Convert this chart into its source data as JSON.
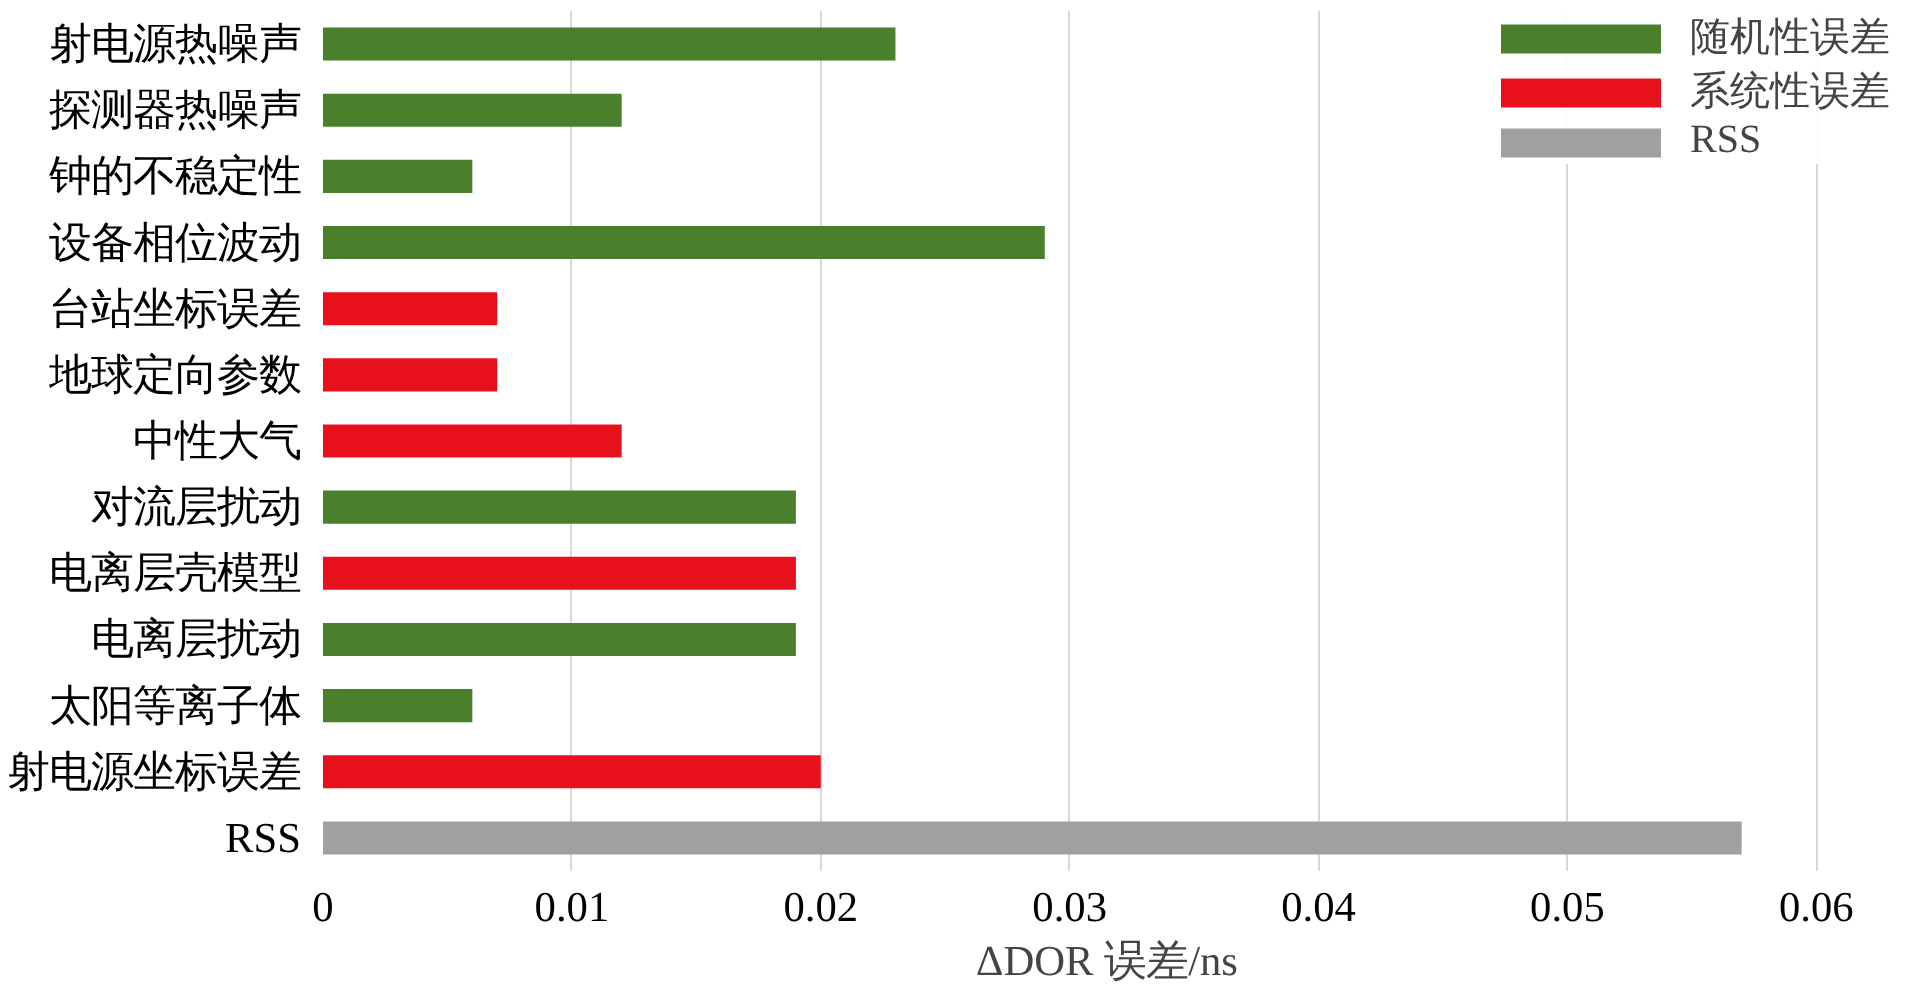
{
  "chart_data": {
    "type": "bar",
    "orientation": "horizontal",
    "xlabel": "ΔDOR 误差/ns",
    "categories": [
      "射电源热噪声",
      "探测器热噪声",
      "钟的不稳定性",
      "设备相位波动",
      "台站坐标误差",
      "地球定向参数",
      "中性大气",
      "对流层扰动",
      "电离层壳模型",
      "电离层扰动",
      "太阳等离子体",
      "射电源坐标误差",
      "RSS"
    ],
    "series": [
      {
        "name": "随机性误差",
        "color": "#4a7f2c",
        "values": [
          0.023,
          0.012,
          0.006,
          0.029,
          null,
          null,
          null,
          0.019,
          null,
          0.019,
          0.006,
          null,
          null
        ]
      },
      {
        "name": "系统性误差",
        "color": "#e8101a",
        "values": [
          null,
          null,
          null,
          null,
          0.007,
          0.007,
          0.012,
          null,
          0.019,
          null,
          null,
          0.02,
          null
        ]
      },
      {
        "name": "RSS",
        "color": "#a0a0a0",
        "values": [
          null,
          null,
          null,
          null,
          null,
          null,
          null,
          null,
          null,
          null,
          null,
          null,
          0.057
        ]
      }
    ],
    "xlim": [
      0,
      0.063
    ],
    "xticks": [
      0,
      0.01,
      0.02,
      0.03,
      0.04,
      0.05,
      0.06
    ],
    "grid": "x",
    "legend": "top right"
  }
}
